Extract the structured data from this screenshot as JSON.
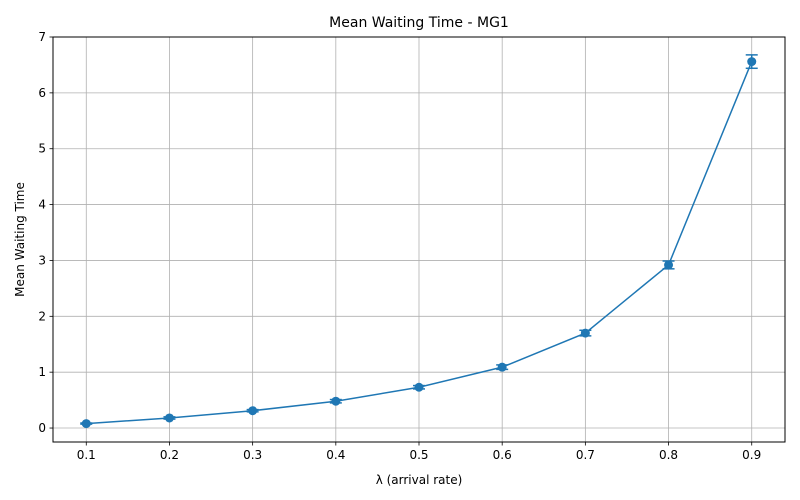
{
  "chart_data": {
    "type": "line",
    "title": "Mean Waiting Time - MG1",
    "xlabel": "λ (arrival rate)",
    "ylabel": "Mean Waiting Time",
    "xlim": [
      0.06,
      0.94
    ],
    "ylim": [
      -0.25,
      7
    ],
    "grid": true,
    "xticks": [
      0.1,
      0.2,
      0.3,
      0.4,
      0.5,
      0.6,
      0.7,
      0.8,
      0.9
    ],
    "yticks": [
      0,
      1,
      2,
      3,
      4,
      5,
      6,
      7
    ],
    "color": "#1f77b4",
    "series": [
      {
        "x": [
          0.1,
          0.2,
          0.3,
          0.4,
          0.5,
          0.6,
          0.7,
          0.8,
          0.9
        ],
        "y": [
          0.08,
          0.18,
          0.31,
          0.48,
          0.73,
          1.09,
          1.7,
          2.92,
          6.56
        ],
        "err": [
          0.01,
          0.02,
          0.02,
          0.03,
          0.03,
          0.04,
          0.05,
          0.07,
          0.12
        ]
      }
    ]
  }
}
